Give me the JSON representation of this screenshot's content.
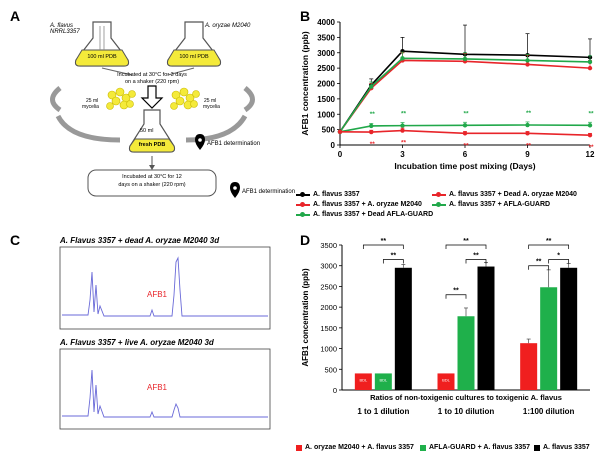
{
  "panel_letters": {
    "a": "A",
    "b": "B",
    "c": "C",
    "d": "D"
  },
  "panel_a": {
    "flask_left_label": "A. flavus NRRL3357",
    "flask_right_label": "A. oryzae M2040",
    "flask_left_medium": "100 ml PDB",
    "flask_right_medium": "100 ml PDB",
    "incubation_1_line1": "Incubated at 30°C for 3 days",
    "incubation_1_line2": "on a shaker (220 rpm)",
    "mycelia_left_line1": "25 ml",
    "mycelia_left_line2": "mycelia",
    "mycelia_right_line1": "25 ml",
    "mycelia_right_line2": "mycelia",
    "fresh_flask_volume": "50 ml",
    "fresh_flask_medium": "fresh PDB",
    "afb1_det_1": "AFB1 determination",
    "incubation_2_line1": "Incubated at 30°C for 12",
    "incubation_2_line2": "days on a shaker (220 rpm)",
    "afb1_det_2": "AFB1 determination"
  },
  "panel_c": {
    "top_title": "A. Flavus 3357 + dead A. oryzae M2040  3d",
    "bottom_title": "A. Flavus 3357 + live A. oryzae M2040  3d",
    "peak_label_top": "AFB1",
    "peak_label_bottom": "AFB1"
  },
  "legend_b": [
    {
      "label": "A. flavus 3357",
      "color": "#000000"
    },
    {
      "label": "A. flavus 3357 + Dead A. oryzae M2040",
      "color": "#e8252a"
    },
    {
      "label": "A. flavus 3357 + A. oryzae M2040",
      "color": "#e8252a"
    },
    {
      "label": "A. flavus 3357 + AFLA-GUARD",
      "color": "#21a84a"
    },
    {
      "label": "A. flavus 3357 + Dead AFLA-GUARD",
      "color": "#21a84a"
    }
  ],
  "legend_d": [
    {
      "label": "A. oryzae M2040 + A. flavus 3357",
      "color": "#f01f1f"
    },
    {
      "label": "AFLA-GUARD + A. flavus 3357",
      "color": "#1fb04b"
    },
    {
      "label": "A. flavus 3357",
      "color": "#000000"
    }
  ],
  "chart_data": [
    {
      "panel": "B",
      "type": "line",
      "xlabel": "Incubation time post mixing (Days)",
      "ylabel": "AFB1 concentration (ppb)",
      "x": [
        0,
        1.5,
        3,
        6,
        9,
        12
      ],
      "xticks": [
        0,
        3,
        6,
        9,
        12
      ],
      "ylim": [
        0,
        4000
      ],
      "yticks": [
        0,
        500,
        1000,
        1500,
        2000,
        2500,
        3000,
        3500,
        4000
      ],
      "series": [
        {
          "name": "A. flavus 3357",
          "color": "#000000",
          "values": [
            430,
            1950,
            3050,
            2950,
            2920,
            2850
          ],
          "errors": [
            0,
            200,
            450,
            950,
            700,
            600
          ]
        },
        {
          "name": "A. flavus 3357 + Dead A. oryzae M2040",
          "color": "#e8252a",
          "values": [
            430,
            1850,
            2750,
            2720,
            2620,
            2500
          ],
          "errors": [
            0,
            150,
            250,
            250,
            300,
            250
          ]
        },
        {
          "name": "A. flavus 3357 + Dead AFLA-GUARD",
          "color": "#21a84a",
          "values": [
            430,
            1900,
            2820,
            2800,
            2750,
            2700
          ],
          "errors": [
            0,
            150,
            200,
            200,
            200,
            200
          ]
        },
        {
          "name": "A. flavus 3357 + AFLA-GUARD",
          "color": "#21a84a",
          "values": [
            430,
            620,
            630,
            640,
            650,
            640
          ],
          "errors": [
            0,
            80,
            100,
            100,
            100,
            100
          ]
        },
        {
          "name": "A. flavus 3357 + A. oryzae M2040",
          "color": "#e8252a",
          "values": [
            430,
            420,
            470,
            380,
            380,
            320
          ],
          "errors": [
            0,
            60,
            80,
            60,
            60,
            60
          ]
        }
      ],
      "annotations_green": [
        "**",
        "**",
        "**",
        "**",
        "**"
      ],
      "annotations_red": [
        "**",
        "**",
        "**",
        "**",
        "**"
      ]
    },
    {
      "panel": "D",
      "type": "bar",
      "xlabel": "Ratios of non-toxigenic cultures to toxigenic A. flavus",
      "ylabel": "AFB1 concentration (ppb)",
      "categories": [
        "1 to 1 dilution",
        "1 to 10 dilution",
        "1:100 dilution"
      ],
      "ylim": [
        0,
        3500
      ],
      "yticks": [
        0,
        500,
        1000,
        1500,
        2000,
        2500,
        3000,
        3500
      ],
      "series": [
        {
          "name": "A. oryzae M2040 + A. flavus 3357",
          "color": "#f01f1f",
          "values": [
            400,
            400,
            1130
          ],
          "errors": [
            0,
            0,
            100
          ]
        },
        {
          "name": "AFLA-GUARD + A. flavus 3357",
          "color": "#1fb04b",
          "values": [
            400,
            1780,
            2480
          ],
          "errors": [
            0,
            200,
            420
          ]
        },
        {
          "name": "A. flavus 3357",
          "color": "#000000",
          "values": [
            2950,
            2980,
            2950
          ],
          "errors": [
            80,
            100,
            100
          ]
        }
      ],
      "bar_labels": [
        "BDL",
        "BDL",
        "BDL"
      ],
      "significance": [
        "**",
        "**",
        "**",
        "**",
        "**",
        "**",
        "**",
        "*"
      ]
    }
  ]
}
